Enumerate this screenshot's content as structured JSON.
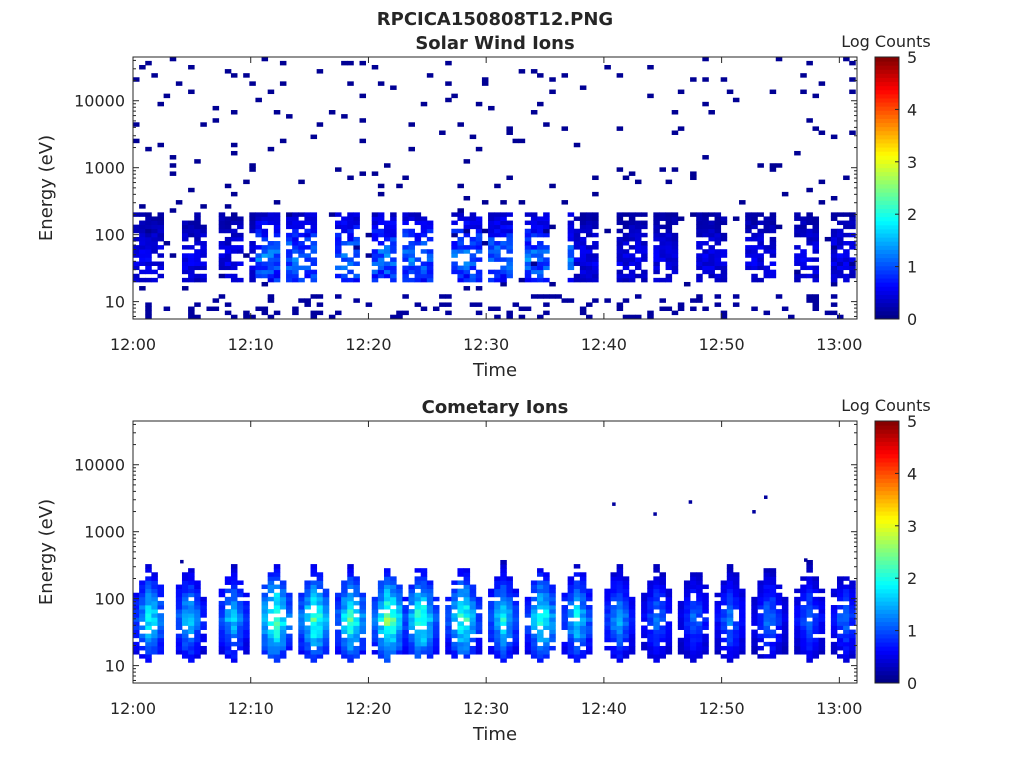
{
  "figure": {
    "suptitle": "RPCICA150808T12.PNG"
  },
  "chart_data": [
    {
      "type": "heatmap",
      "title": "Solar Wind Ions",
      "xlabel": "Time",
      "ylabel": "Energy (eV)",
      "x_ticks": [
        "12:00",
        "12:10",
        "12:20",
        "12:30",
        "12:40",
        "12:50",
        "13:00"
      ],
      "x_range_minutes": [
        0,
        61.5
      ],
      "y_ticks": [
        "10",
        "100",
        "1000",
        "10000"
      ],
      "y_scale": "log",
      "ylim": [
        5.5,
        45000
      ],
      "colorbar": {
        "label": "Log Counts",
        "ticks": [
          "0",
          "1",
          "2",
          "3",
          "4",
          "5"
        ],
        "range": [
          0,
          5
        ],
        "colormap": "jet"
      },
      "description_bursts_minutes": [
        1,
        5,
        8,
        11,
        14,
        18,
        21,
        24,
        28,
        31,
        34,
        38,
        42,
        45,
        49,
        53,
        57,
        60
      ],
      "core_energy_eV": [
        20,
        200
      ],
      "max_log_counts": 1.5,
      "grid": false
    },
    {
      "type": "heatmap",
      "title": "Cometary Ions",
      "xlabel": "Time",
      "ylabel": "Energy (eV)",
      "x_ticks": [
        "12:00",
        "12:10",
        "12:20",
        "12:30",
        "12:40",
        "12:50",
        "13:00"
      ],
      "x_range_minutes": [
        0,
        61.5
      ],
      "y_ticks": [
        "10",
        "100",
        "1000",
        "10000"
      ],
      "y_scale": "log",
      "ylim": [
        5.5,
        45000
      ],
      "colorbar": {
        "label": "Log Counts",
        "ticks": [
          "0",
          "1",
          "2",
          "3",
          "4",
          "5"
        ],
        "range": [
          0,
          5
        ],
        "colormap": "jet"
      },
      "bursts": [
        {
          "t": 1.2,
          "peak": 2.3
        },
        {
          "t": 4.5,
          "peak": 2.0
        },
        {
          "t": 8.2,
          "peak": 2.0
        },
        {
          "t": 11.8,
          "peak": 3.0
        },
        {
          "t": 15.2,
          "peak": 2.8
        },
        {
          "t": 18.3,
          "peak": 2.7
        },
        {
          "t": 21.5,
          "peak": 3.1
        },
        {
          "t": 24.2,
          "peak": 2.8
        },
        {
          "t": 27.8,
          "peak": 2.7
        },
        {
          "t": 31.2,
          "peak": 2.2
        },
        {
          "t": 34.5,
          "peak": 2.6
        },
        {
          "t": 37.5,
          "peak": 2.2
        },
        {
          "t": 41.0,
          "peak": 1.8
        },
        {
          "t": 44.3,
          "peak": 1.5
        },
        {
          "t": 47.5,
          "peak": 1.4
        },
        {
          "t": 50.5,
          "peak": 1.5
        },
        {
          "t": 53.8,
          "peak": 1.5
        },
        {
          "t": 57.2,
          "peak": 1.4
        },
        {
          "t": 60.2,
          "peak": 1.4
        }
      ],
      "core_energy_eV": [
        15,
        400
      ],
      "grid": false
    }
  ]
}
